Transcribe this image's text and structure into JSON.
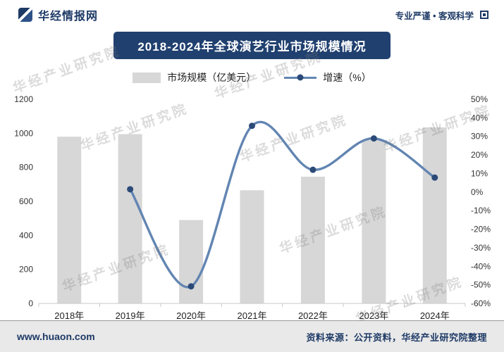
{
  "header": {
    "brand": "华经情报网",
    "tagline": "专业严谨 • 客观科学"
  },
  "title": "2018-2024年全球演艺行业市场规模情况",
  "legend": {
    "bar_label": "市场规模（亿美元）",
    "line_label": "增速（%）"
  },
  "watermark": "华经产业研究院",
  "footer": {
    "site": "www.huaon.com",
    "source": "资料来源：公开资料，华经产业研究院整理"
  },
  "colors": {
    "banner": "#20406f",
    "navy": "#1e3a66",
    "bar": "#d7d7d7",
    "line": "#6285b2",
    "marker": "#2b4a78",
    "axis_line": "#c8c8c8"
  },
  "chart_data": {
    "type": "bar",
    "subtype": "combo-bar-line",
    "title": "2018-2024年全球演艺行业市场规模情况",
    "categories": [
      "2018年",
      "2019年",
      "2020年",
      "2021年",
      "2022年",
      "2023年",
      "2024年"
    ],
    "series": [
      {
        "name": "市场规模（亿美元）",
        "type": "bar",
        "axis": "left",
        "values": [
          980,
          995,
          490,
          665,
          745,
          960,
          1035
        ]
      },
      {
        "name": "增速（%）",
        "type": "line",
        "axis": "right",
        "values": [
          null,
          1.5,
          -50.8,
          35.7,
          12.0,
          28.9,
          7.8
        ]
      }
    ],
    "left_axis": {
      "min": 0,
      "max": 1200,
      "step": 200
    },
    "right_axis": {
      "min": -60,
      "max": 50,
      "step": 10,
      "suffix": "%"
    },
    "grid": false,
    "legend_position": "top"
  }
}
